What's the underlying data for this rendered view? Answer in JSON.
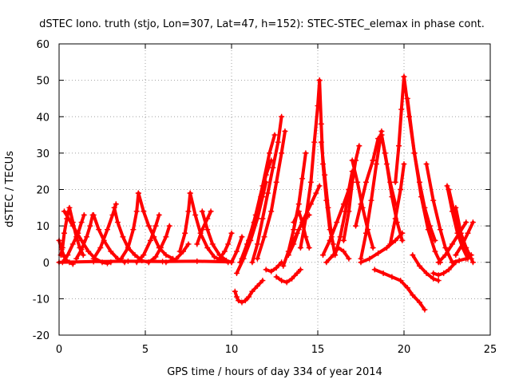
{
  "chart_data": {
    "type": "scatter",
    "title": "dSTEC Iono. truth (stjo, Lon=307, Lat=47, h=152): STEC-STEC_elemax in phase cont.",
    "xlabel": "GPS time / hours of day 334 of year 2014",
    "ylabel": "dSTEC  / TECUs",
    "xlim": [
      0,
      25
    ],
    "ylim": [
      -20,
      60
    ],
    "xticks": [
      0,
      5,
      10,
      15,
      20,
      25
    ],
    "yticks": [
      -20,
      -10,
      0,
      10,
      20,
      30,
      40,
      50,
      60
    ],
    "grid": true,
    "marker": "plus",
    "color": "#ff0000",
    "series": [
      {
        "x": [
          0.0,
          0.15,
          0.3,
          0.45,
          0.6,
          0.8
        ],
        "y": [
          6,
          3.5,
          1.5,
          0.5,
          0.0,
          -0.5
        ]
      },
      {
        "x": [
          0.1,
          0.2,
          0.3,
          0.45,
          0.6,
          0.8,
          1.0,
          1.2,
          1.4
        ],
        "y": [
          2,
          4,
          8,
          12,
          15,
          11,
          7,
          4,
          2
        ]
      },
      {
        "x": [
          0.2,
          0.5,
          0.8,
          1.1,
          1.3,
          1.45
        ],
        "y": [
          0,
          2,
          5,
          8,
          11,
          13
        ]
      },
      {
        "x": [
          0.3,
          0.8,
          1.3,
          1.7,
          2.1,
          2.5,
          2.8,
          3.0
        ],
        "y": [
          14,
          10,
          6,
          3,
          1,
          0,
          -0.3,
          0
        ]
      },
      {
        "x": [
          1.0,
          1.3,
          1.6,
          1.8,
          1.95
        ],
        "y": [
          1,
          3.5,
          7,
          10,
          13
        ]
      },
      {
        "x": [
          2.0,
          2.3,
          2.6,
          3.0,
          3.4,
          3.8
        ],
        "y": [
          13,
          9,
          6,
          3,
          1,
          0
        ]
      },
      {
        "x": [
          2.0,
          2.4,
          2.8,
          3.1,
          3.3
        ],
        "y": [
          1,
          4,
          9,
          13,
          16
        ]
      },
      {
        "x": [
          3.2,
          3.4,
          3.7,
          4.0,
          4.4,
          4.8,
          5.2
        ],
        "y": [
          15,
          11,
          7,
          4,
          2,
          0.5,
          0
        ]
      },
      {
        "x": [
          3.6,
          4.0,
          4.3,
          4.5,
          4.6
        ],
        "y": [
          1,
          4,
          9,
          14,
          19
        ]
      },
      {
        "x": [
          4.6,
          4.9,
          5.2,
          5.5,
          5.8,
          6.2,
          6.6
        ],
        "y": [
          19,
          14,
          10,
          7,
          4,
          2,
          1
        ]
      },
      {
        "x": [
          4.5,
          4.9,
          5.3,
          5.6,
          5.8
        ],
        "y": [
          0,
          2,
          6,
          10,
          13
        ]
      },
      {
        "x": [
          5.2,
          5.6,
          5.9,
          6.2,
          6.4
        ],
        "y": [
          0,
          1.5,
          4,
          7,
          10
        ]
      },
      {
        "x": [
          6.2,
          6.8,
          7.2,
          7.5
        ],
        "y": [
          0,
          1,
          3,
          5
        ]
      },
      {
        "x": [
          7.0,
          7.3,
          7.5,
          7.6
        ],
        "y": [
          3,
          8,
          14,
          19
        ]
      },
      {
        "x": [
          7.6,
          7.9,
          8.2,
          8.6,
          9.0,
          9.4,
          9.8
        ],
        "y": [
          19,
          13,
          8,
          4,
          1.5,
          0.5,
          0
        ]
      },
      {
        "x": [
          8.0,
          8.3,
          8.6,
          8.8
        ],
        "y": [
          5,
          9,
          12,
          14
        ]
      },
      {
        "x": [
          8.3,
          8.6,
          8.9,
          9.3,
          9.7,
          10.0
        ],
        "y": [
          14,
          9,
          5,
          2,
          0.5,
          0
        ]
      },
      {
        "x": [
          9.3,
          9.6,
          9.8,
          10.0
        ],
        "y": [
          1,
          3,
          5,
          8
        ]
      },
      {
        "x": [
          10.0,
          10.3,
          10.6
        ],
        "y": [
          0,
          3,
          7
        ]
      },
      {
        "x": [
          10.2,
          10.3,
          10.4,
          10.6,
          10.8,
          11.0,
          11.2,
          11.5,
          11.8
        ],
        "y": [
          -8,
          -9.5,
          -10.5,
          -11,
          -10.5,
          -9.5,
          -8,
          -6.5,
          -5
        ]
      },
      {
        "x": [
          10.3,
          10.7,
          11.1,
          11.5,
          11.8,
          12.0
        ],
        "y": [
          -3,
          1,
          6,
          12,
          18,
          22
        ]
      },
      {
        "x": [
          10.5,
          10.9,
          11.3,
          11.7,
          12.0,
          12.3
        ],
        "y": [
          0,
          5,
          11,
          18,
          24,
          28
        ]
      },
      {
        "x": [
          10.6,
          11.0,
          11.4,
          11.8,
          12.2,
          12.5
        ],
        "y": [
          1,
          6,
          13,
          21,
          30,
          35
        ]
      },
      {
        "x": [
          11.2,
          11.5,
          11.8,
          12.1,
          12.4,
          12.7,
          12.9
        ],
        "y": [
          0,
          5,
          12,
          19,
          26,
          33,
          40
        ]
      },
      {
        "x": [
          11.5,
          11.9,
          12.3,
          12.6,
          12.9,
          13.1
        ],
        "y": [
          1,
          7,
          14,
          22,
          30,
          36
        ]
      },
      {
        "x": [
          12.0,
          12.3,
          12.6,
          12.9
        ],
        "y": [
          -2,
          -2.5,
          -1.5,
          0
        ]
      },
      {
        "x": [
          12.6,
          12.9,
          13.2,
          13.5,
          13.8,
          14.0
        ],
        "y": [
          -4,
          -5,
          -5.5,
          -4.5,
          -3,
          -2
        ]
      },
      {
        "x": [
          13.0,
          13.3,
          13.6,
          13.9,
          14.1,
          14.3
        ],
        "y": [
          -1,
          3,
          9,
          16,
          23,
          30
        ]
      },
      {
        "x": [
          13.3,
          13.6,
          13.9,
          14.2,
          14.5
        ],
        "y": [
          2,
          5,
          9,
          12,
          13
        ]
      },
      {
        "x": [
          13.5,
          13.8,
          14.2,
          14.6,
          14.9,
          15.1
        ],
        "y": [
          5,
          8,
          12,
          16,
          19,
          21
        ]
      },
      {
        "x": [
          13.6,
          13.9,
          14.1,
          14.3,
          14.5
        ],
        "y": [
          11,
          14,
          11,
          7,
          4
        ]
      },
      {
        "x": [
          14.0,
          14.3,
          14.6,
          14.8,
          15.0,
          15.1
        ],
        "y": [
          4,
          12,
          22,
          33,
          43,
          50
        ]
      },
      {
        "x": [
          15.1,
          15.2,
          15.3,
          15.5,
          15.7,
          15.9
        ],
        "y": [
          50,
          38,
          27,
          17,
          9,
          5
        ]
      },
      {
        "x": [
          15.2,
          15.4,
          15.6,
          15.8,
          16.0
        ],
        "y": [
          33,
          24,
          15,
          7,
          2
        ]
      },
      {
        "x": [
          15.3,
          15.7,
          16.1,
          16.5,
          16.8
        ],
        "y": [
          2,
          6,
          11,
          16,
          20
        ]
      },
      {
        "x": [
          15.5,
          15.9,
          16.2,
          16.5,
          16.8
        ],
        "y": [
          0,
          2,
          4,
          3,
          1
        ]
      },
      {
        "x": [
          16.0,
          16.3,
          16.6,
          16.8,
          17.0
        ],
        "y": [
          2,
          7,
          14,
          20,
          25
        ]
      },
      {
        "x": [
          16.5,
          16.8,
          17.0,
          17.2,
          17.4
        ],
        "y": [
          6,
          14,
          22,
          28,
          32
        ]
      },
      {
        "x": [
          17.0,
          17.3,
          17.6,
          17.9,
          18.2
        ],
        "y": [
          28,
          22,
          15,
          9,
          4
        ]
      },
      {
        "x": [
          17.2,
          17.5,
          17.8,
          18.2
        ],
        "y": [
          10,
          16,
          22,
          28
        ]
      },
      {
        "x": [
          17.5,
          17.8,
          18.1,
          18.4,
          18.7
        ],
        "y": [
          1,
          8,
          17,
          27,
          36
        ]
      },
      {
        "x": [
          18.2,
          18.5,
          18.7,
          18.9,
          19.2,
          19.5
        ],
        "y": [
          28,
          34,
          35,
          30,
          22,
          16
        ]
      },
      {
        "x": [
          18.7,
          19.0,
          19.3,
          19.6,
          19.9
        ],
        "y": [
          35,
          27,
          18,
          11,
          6
        ]
      },
      {
        "x": [
          18.3,
          18.8,
          19.3,
          19.8,
          20.2,
          20.5,
          20.9,
          21.2
        ],
        "y": [
          -2,
          -3,
          -4,
          -5,
          -7,
          -9,
          -11,
          -13
        ]
      },
      {
        "x": [
          17.5,
          18.0,
          18.5,
          19.0,
          19.5,
          19.9
        ],
        "y": [
          0,
          1,
          2.5,
          4,
          6,
          8
        ]
      },
      {
        "x": [
          19.2,
          19.5,
          19.8,
          20.0
        ],
        "y": [
          5,
          12,
          20,
          27
        ]
      },
      {
        "x": [
          19.5,
          19.7,
          19.85,
          20.0
        ],
        "y": [
          22,
          32,
          42,
          51
        ]
      },
      {
        "x": [
          20.0,
          20.3,
          20.6,
          20.9,
          21.2,
          21.5,
          21.8
        ],
        "y": [
          51,
          40,
          30,
          22,
          15,
          10,
          6
        ]
      },
      {
        "x": [
          20.2,
          20.6,
          21.0,
          21.4,
          21.8,
          22.1
        ],
        "y": [
          45,
          30,
          18,
          9,
          3,
          0
        ]
      },
      {
        "x": [
          20.5,
          20.9,
          21.3,
          21.7,
          22.0
        ],
        "y": [
          2,
          -1,
          -3,
          -4.5,
          -5
        ]
      },
      {
        "x": [
          21.3,
          21.7,
          22.1,
          22.4,
          22.8
        ],
        "y": [
          27,
          17,
          9,
          4,
          0
        ]
      },
      {
        "x": [
          21.7,
          22.0,
          22.3,
          22.6,
          23.0
        ],
        "y": [
          -3,
          -3.5,
          -3,
          -2,
          0
        ]
      },
      {
        "x": [
          22.0,
          22.4,
          22.8,
          23.2,
          23.6
        ],
        "y": [
          0,
          2,
          5,
          8,
          11
        ]
      },
      {
        "x": [
          22.5,
          22.8,
          23.1,
          23.4,
          23.7
        ],
        "y": [
          21,
          14,
          8,
          4,
          1
        ]
      },
      {
        "x": [
          22.6,
          23.0,
          23.4,
          23.8,
          24.0
        ],
        "y": [
          20,
          12,
          6,
          2,
          0
        ]
      },
      {
        "x": [
          23.0,
          23.3,
          23.6,
          23.9
        ],
        "y": [
          15,
          8,
          4,
          1
        ]
      },
      {
        "x": [
          23.0,
          23.4,
          23.7,
          24.0
        ],
        "y": [
          2,
          5,
          8,
          11
        ]
      },
      {
        "x": [
          22.8,
          23.2,
          23.6,
          23.9
        ],
        "y": [
          0,
          0.5,
          1,
          2
        ]
      },
      {
        "x": [
          0.0,
          2.0,
          4.0,
          6.0,
          8.0,
          10.0
        ],
        "y": [
          0,
          0.2,
          0.3,
          0.2,
          0.3,
          0.1
        ]
      }
    ]
  }
}
